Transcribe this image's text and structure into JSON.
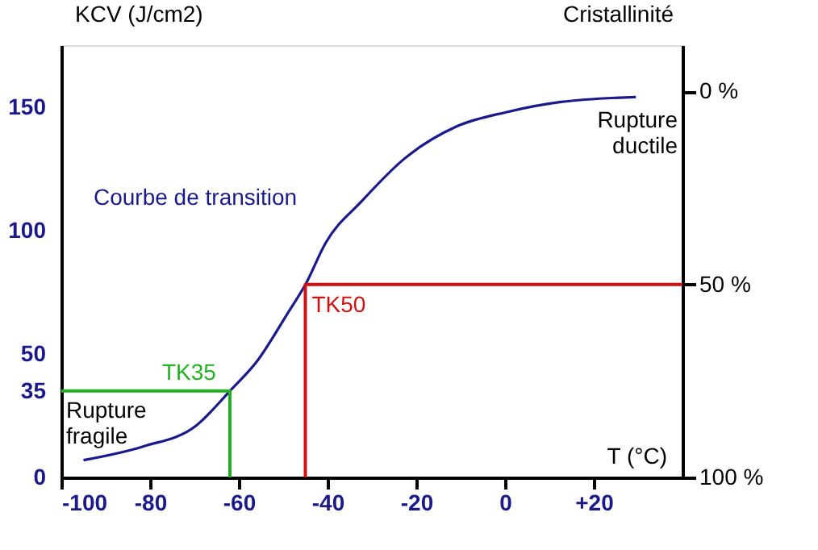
{
  "chart_data": {
    "type": "line",
    "xlabel": "T (°C)",
    "ylabel": "KCV (J/cm2)",
    "y2label": "Cristallinité",
    "xlim": [
      -100,
      40
    ],
    "xticks": [
      -100,
      -80,
      -60,
      -40,
      -20,
      0,
      {
        "value": 20,
        "label": "+20"
      }
    ],
    "ylim": [
      0,
      175
    ],
    "yticks": [
      0,
      35,
      50,
      100,
      150
    ],
    "y2lim": [
      100,
      -12
    ],
    "y2ticks": [
      {
        "value": 0,
        "label": "0 %"
      },
      {
        "value": 50,
        "label": "50 %"
      },
      {
        "value": 100,
        "label": "100 %"
      }
    ],
    "series": [
      {
        "color": "#1a1a8c",
        "x": [
          -95,
          -81.6,
          -69.6,
          -62,
          -55.9,
          -48.8,
          -45,
          -40.4,
          -32.2,
          -22.7,
          -11,
          0.6,
          12.6,
          29.5
        ],
        "values": [
          7,
          12.5,
          21,
          35,
          47,
          67,
          78,
          95,
          112,
          129,
          142,
          148,
          152,
          154
        ]
      },
      {
        "color": "#22b022",
        "x": [
          -100,
          -62,
          -62
        ],
        "values": [
          35,
          35,
          0
        ]
      },
      {
        "color": "#d01010",
        "axis": "y2",
        "x": [
          40,
          -45,
          -45
        ],
        "values": [
          50,
          50,
          100
        ]
      }
    ],
    "annotations": [
      "Courbe de transition",
      "Rupture\nductile",
      "Rupture\nfragile",
      {
        "text": "TK35",
        "x": -62,
        "y": 35
      },
      {
        "text": "TK50",
        "x": -45,
        "y": 78
      }
    ],
    "grid": false,
    "marker": "none",
    "line_style": "solid"
  }
}
